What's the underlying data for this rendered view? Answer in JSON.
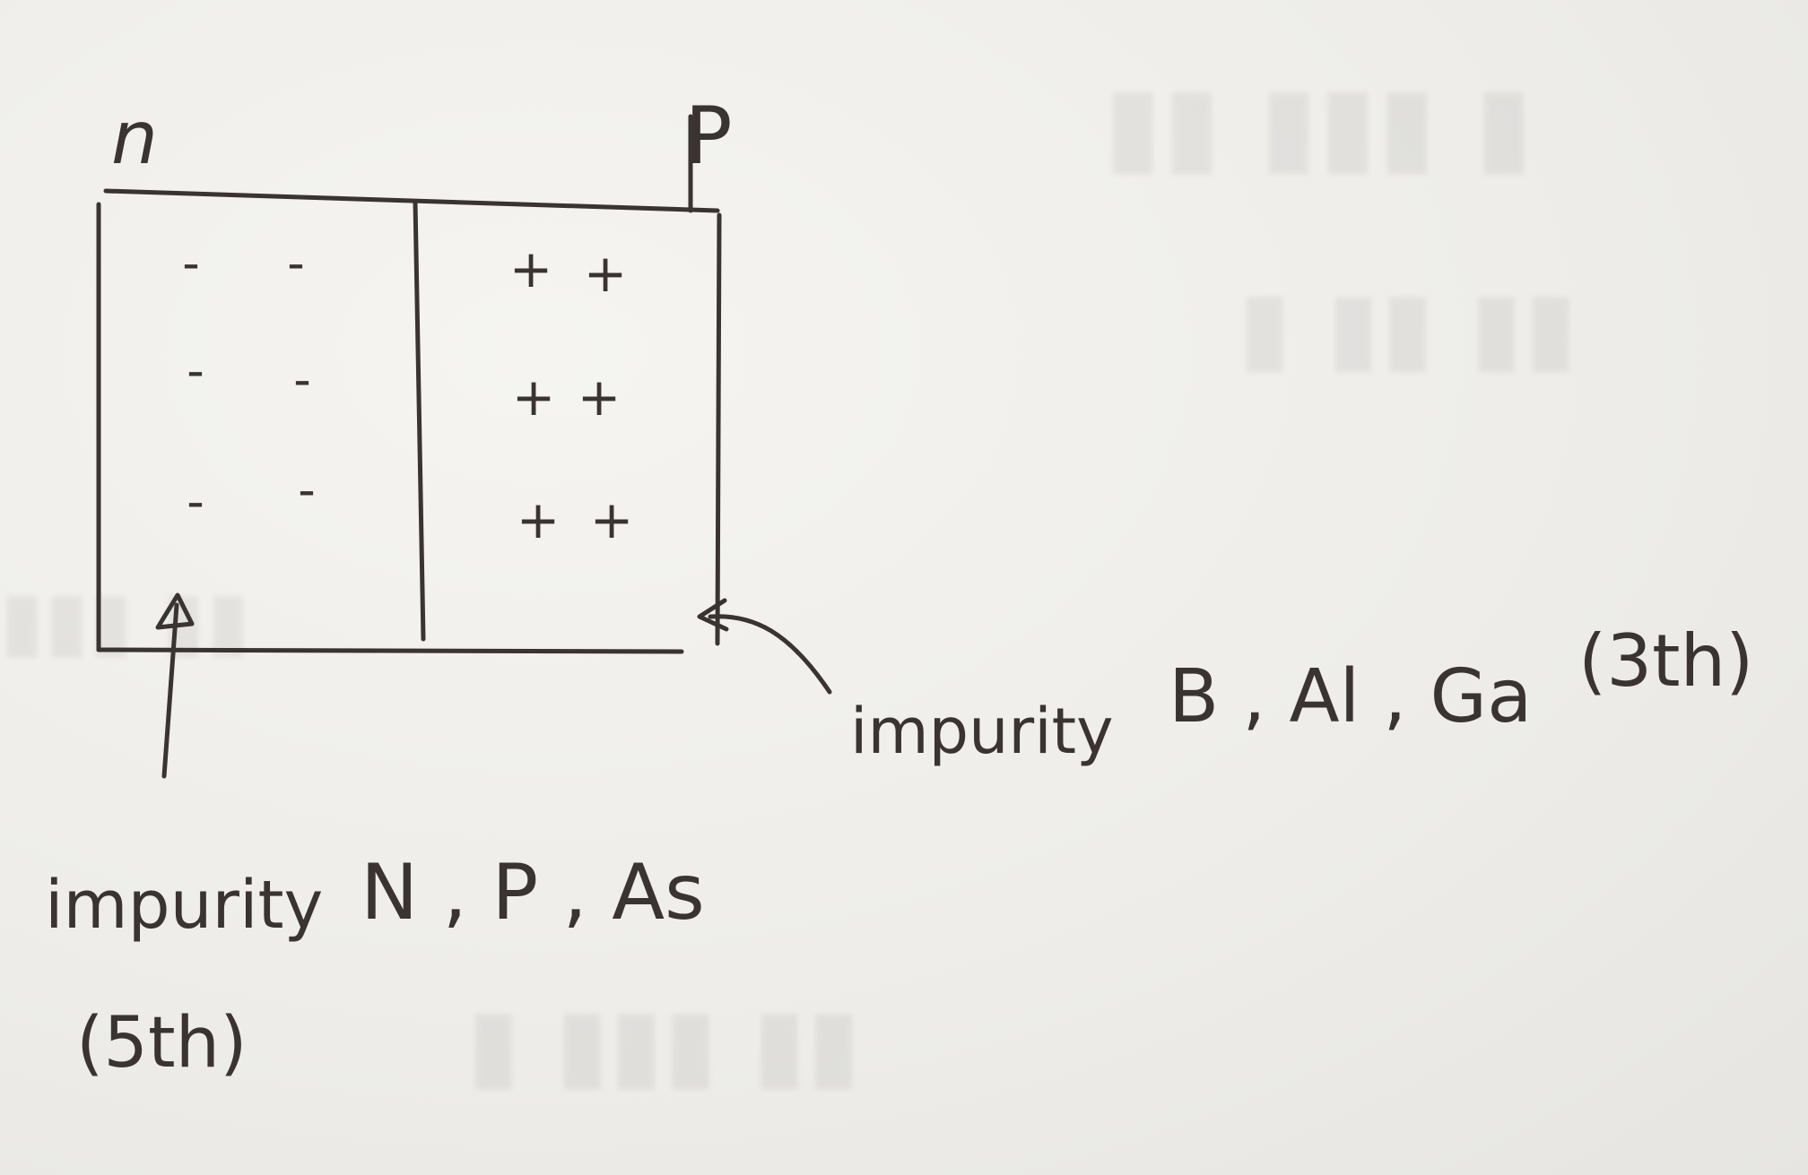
{
  "diagram": {
    "label_n": "n",
    "label_p": "P",
    "n_region_charges": [
      "-",
      "-",
      "-",
      "-",
      "-",
      "-"
    ],
    "p_region_charges": [
      "+",
      "+",
      "+",
      "+",
      "+",
      "+"
    ],
    "annotation_p": {
      "text": "impurity",
      "elements": "B , Al , Ga",
      "group": "(3th)"
    },
    "annotation_n": {
      "text": "impurity",
      "elements": "N , P , As",
      "group": "(5th)"
    }
  },
  "colors": {
    "ink": "#3a3331",
    "paper": "#f1f0ec"
  }
}
